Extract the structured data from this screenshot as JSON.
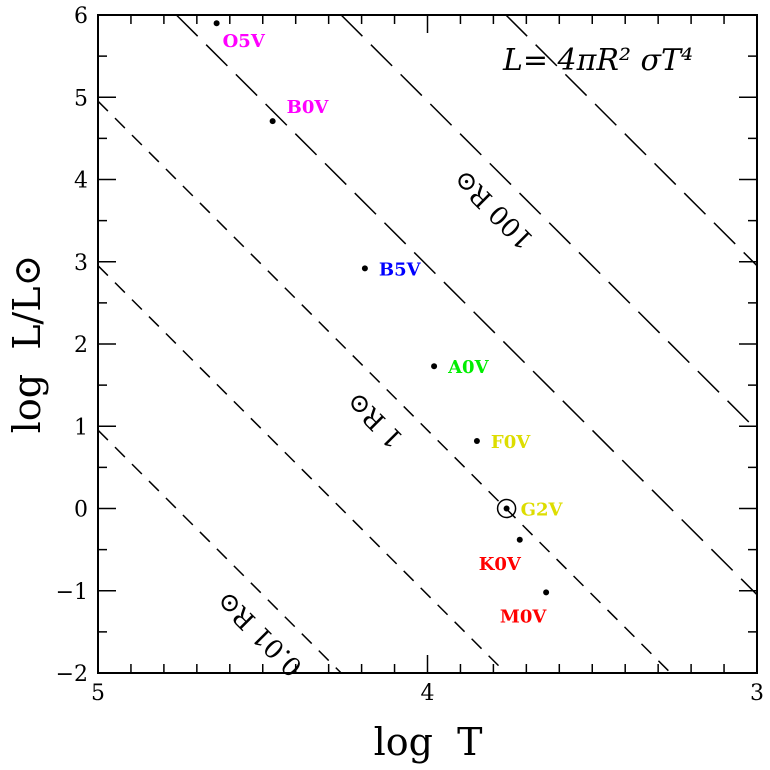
{
  "chart_data": {
    "type": "scatter",
    "title": "",
    "xlabel": "log  T",
    "ylabel": "log  L/L⊙",
    "xlim": [
      5,
      3
    ],
    "ylim": [
      -2,
      6
    ],
    "x_ticks": [
      5,
      4,
      3
    ],
    "y_ticks": [
      -2,
      -1,
      0,
      1,
      2,
      3,
      4,
      5,
      6
    ],
    "x_tick_labels": [
      "5",
      "4",
      "3"
    ],
    "y_tick_labels": [
      "−2",
      "−1",
      "0",
      "1",
      "2",
      "3",
      "4",
      "5",
      "6"
    ],
    "grid": false,
    "equation": "L=  4πR²  σT⁴",
    "points": [
      {
        "label": "O5V",
        "logT": 4.64,
        "logL": 5.9,
        "color": "#ff00ff"
      },
      {
        "label": "B0V",
        "logT": 4.47,
        "logL": 4.71,
        "color": "#ff00ff"
      },
      {
        "label": "B5V",
        "logT": 4.19,
        "logL": 2.92,
        "color": "#0000ff"
      },
      {
        "label": "A0V",
        "logT": 3.98,
        "logL": 1.73,
        "color": "#00ee00"
      },
      {
        "label": "F0V",
        "logT": 3.85,
        "logL": 0.82,
        "color": "#dddd00"
      },
      {
        "label": "G2V",
        "logT": 3.76,
        "logL": 0.0,
        "color": "#dddd00",
        "sun": true
      },
      {
        "label": "K0V",
        "logT": 3.72,
        "logL": -0.38,
        "color": "#ff0000"
      },
      {
        "label": "M0V",
        "logT": 3.64,
        "logL": -1.02,
        "color": "#ff0000"
      }
    ],
    "radius_lines": [
      {
        "logR": -2,
        "label": "0.01 R⊙"
      },
      {
        "logR": -1,
        "label": ""
      },
      {
        "logR": 0,
        "label": "1 R⊙"
      },
      {
        "logR": 1,
        "label": ""
      },
      {
        "logR": 2,
        "label": "100 R⊙"
      },
      {
        "logR": 3,
        "label": ""
      }
    ],
    "sun_logT": 3.762
  }
}
